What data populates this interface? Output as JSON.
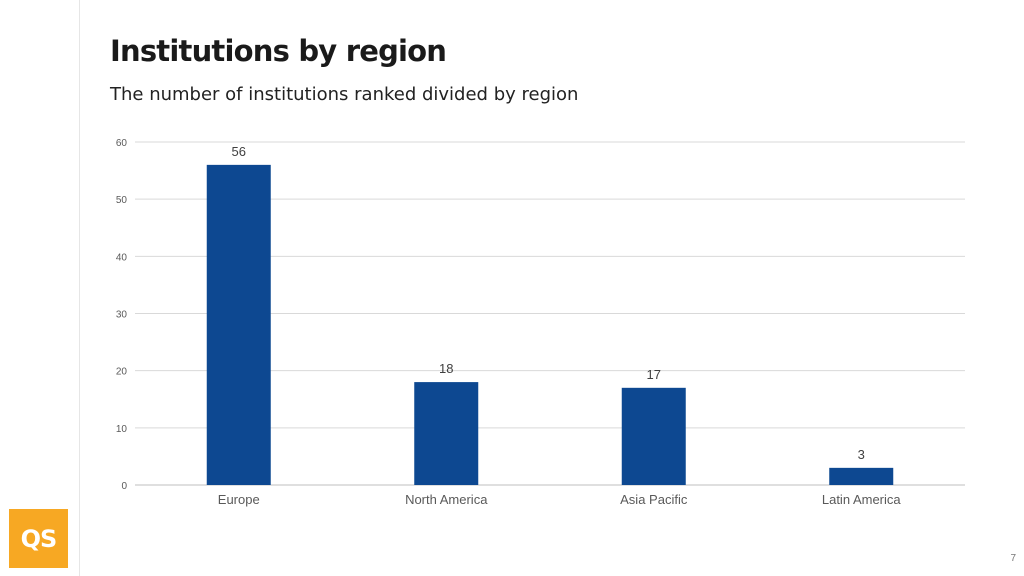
{
  "slide": {
    "title": "Institutions by region",
    "subtitle": "The number of institutions ranked divided by region",
    "page_number": "7",
    "logo_text": "QS",
    "logo_color": "#f7a823"
  },
  "chart_data": {
    "type": "bar",
    "categories": [
      "Europe",
      "North America",
      "Asia Pacific",
      "Latin America"
    ],
    "values": [
      56,
      18,
      17,
      3
    ],
    "yticks": [
      0,
      10,
      20,
      30,
      40,
      50,
      60
    ],
    "ylim": [
      0,
      60
    ],
    "grid": true,
    "bar_color": "#0d4891",
    "data_labels": true
  }
}
